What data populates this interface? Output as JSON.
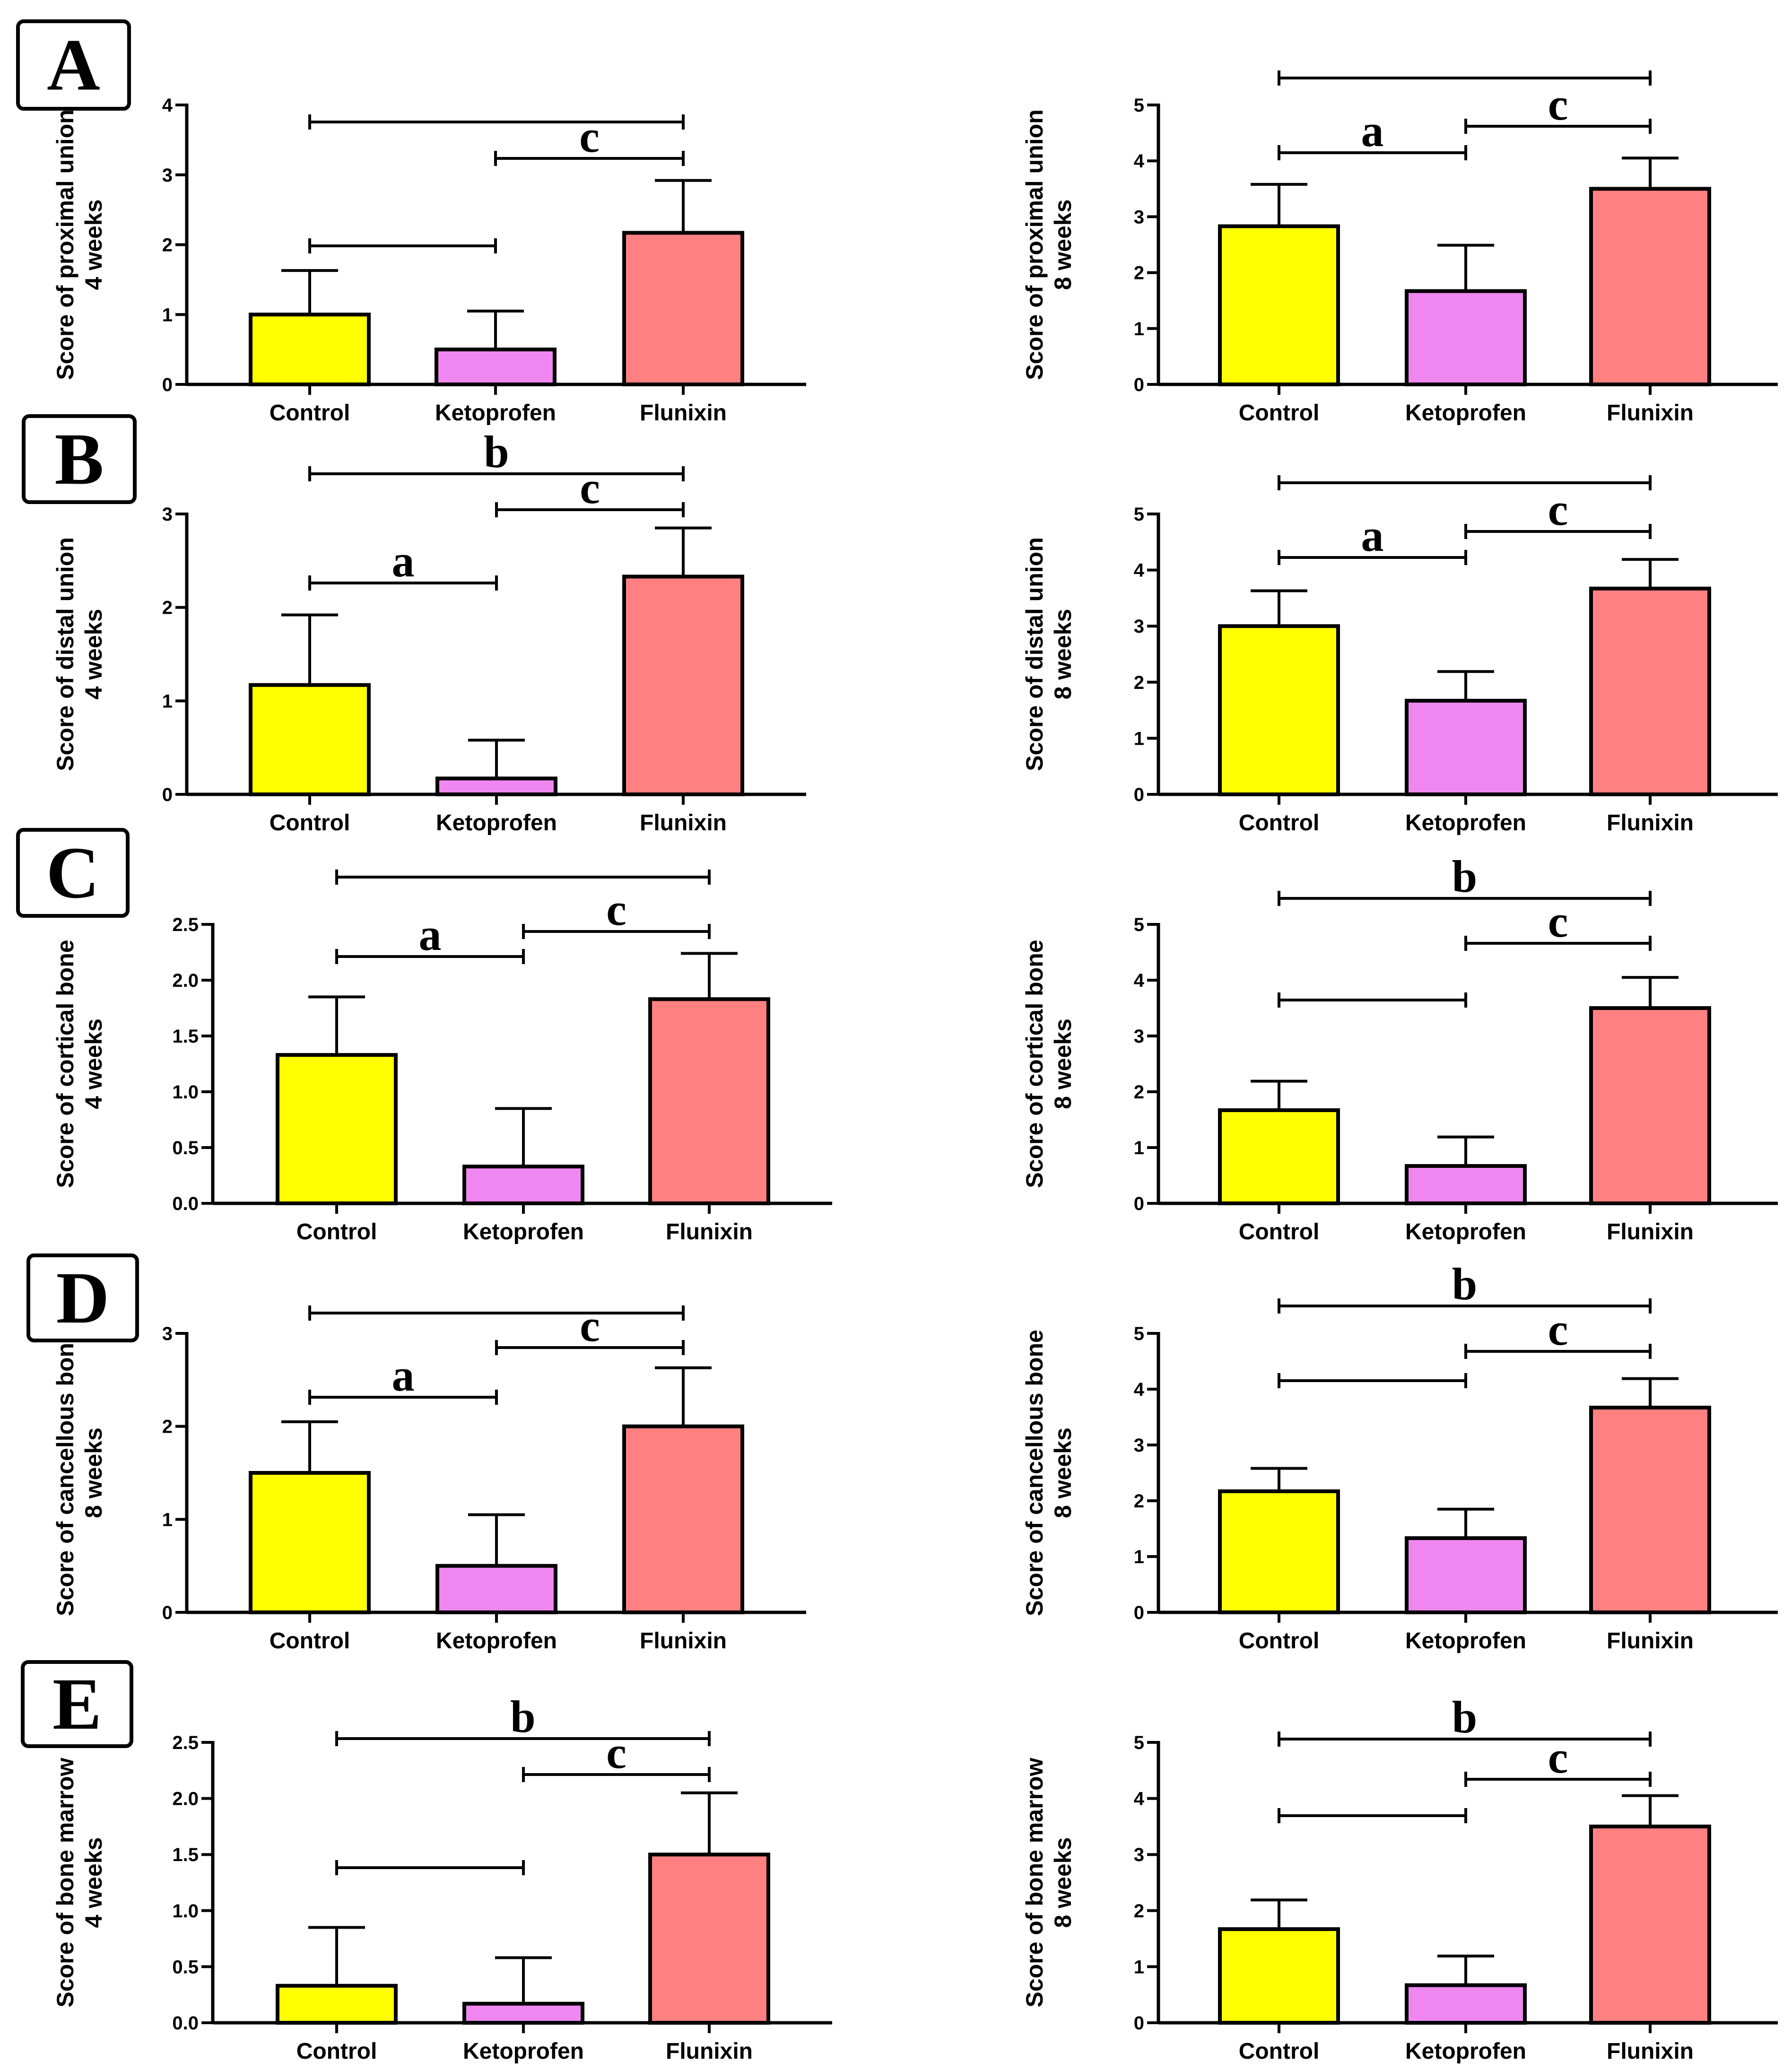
{
  "colors": {
    "control": "#ffff00",
    "ketoprofen": "#f087f0",
    "flunixin": "#ff8080",
    "axis": "#000000"
  },
  "chart_data": [
    {
      "panel": "A",
      "type": "bar",
      "categories": [
        "Control",
        "Ketoprofen",
        "Flunixin"
      ],
      "values": [
        1.0,
        0.5,
        2.17
      ],
      "errors": [
        0.63,
        0.55,
        0.75
      ],
      "ylabel_lines": [
        "Score of proximal union",
        "4 weeks"
      ],
      "ylim": [
        0,
        4
      ],
      "yticks": [
        "0",
        "1",
        "2",
        "3",
        "4"
      ],
      "brackets": [
        {
          "from": 0,
          "to": 1,
          "letter": ""
        },
        {
          "from": 1,
          "to": 2,
          "letter": "c"
        },
        {
          "from": 0,
          "to": 2,
          "letter": ""
        }
      ]
    },
    {
      "panel": "",
      "type": "bar",
      "categories": [
        "Control",
        "Ketoprofen",
        "Flunixin"
      ],
      "values": [
        2.83,
        1.67,
        3.5
      ],
      "errors": [
        0.75,
        0.82,
        0.55
      ],
      "ylabel_lines": [
        "Score of proximal union",
        "8 weeks"
      ],
      "ylim": [
        0,
        5
      ],
      "yticks": [
        "0",
        "1",
        "2",
        "3",
        "4",
        "5"
      ],
      "brackets": [
        {
          "from": 0,
          "to": 1,
          "letter": "a"
        },
        {
          "from": 1,
          "to": 2,
          "letter": "c"
        },
        {
          "from": 0,
          "to": 2,
          "letter": ""
        }
      ]
    },
    {
      "panel": "B",
      "type": "bar",
      "categories": [
        "Control",
        "Ketoprofen",
        "Flunixin"
      ],
      "values": [
        1.17,
        0.17,
        2.33
      ],
      "errors": [
        0.75,
        0.41,
        0.52
      ],
      "ylabel_lines": [
        "Score of distal union",
        "4 weeks"
      ],
      "ylim": [
        0,
        3
      ],
      "yticks": [
        "0",
        "1",
        "2",
        "3"
      ],
      "brackets": [
        {
          "from": 0,
          "to": 1,
          "letter": "a"
        },
        {
          "from": 1,
          "to": 2,
          "letter": "c"
        },
        {
          "from": 0,
          "to": 2,
          "letter": "b"
        }
      ]
    },
    {
      "panel": "",
      "type": "bar",
      "categories": [
        "Control",
        "Ketoprofen",
        "Flunixin"
      ],
      "values": [
        3.0,
        1.67,
        3.67
      ],
      "errors": [
        0.63,
        0.52,
        0.52
      ],
      "ylabel_lines": [
        "Score of distal union",
        "8 weeks"
      ],
      "ylim": [
        0,
        5
      ],
      "yticks": [
        "0",
        "1",
        "2",
        "3",
        "4",
        "5"
      ],
      "brackets": [
        {
          "from": 0,
          "to": 1,
          "letter": "a"
        },
        {
          "from": 1,
          "to": 2,
          "letter": "c"
        },
        {
          "from": 0,
          "to": 2,
          "letter": ""
        }
      ]
    },
    {
      "panel": "C",
      "type": "bar",
      "categories": [
        "Control",
        "Ketoprofen",
        "Flunixin"
      ],
      "values": [
        1.33,
        0.33,
        1.83
      ],
      "errors": [
        0.52,
        0.52,
        0.41
      ],
      "ylabel_lines": [
        "Score of cortical bone",
        "4 weeks"
      ],
      "ylim": [
        0,
        2.5
      ],
      "yticks": [
        "0.0",
        "0.5",
        "1.0",
        "1.5",
        "2.0",
        "2.5"
      ],
      "brackets": [
        {
          "from": 0,
          "to": 1,
          "letter": "a"
        },
        {
          "from": 1,
          "to": 2,
          "letter": "c"
        },
        {
          "from": 0,
          "to": 2,
          "letter": ""
        }
      ]
    },
    {
      "panel": "",
      "type": "bar",
      "categories": [
        "Control",
        "Ketoprofen",
        "Flunixin"
      ],
      "values": [
        1.67,
        0.67,
        3.5
      ],
      "errors": [
        0.52,
        0.52,
        0.55
      ],
      "ylabel_lines": [
        "Score of cortical bone",
        "8 weeks"
      ],
      "ylim": [
        0,
        5
      ],
      "yticks": [
        "0",
        "1",
        "2",
        "3",
        "4",
        "5"
      ],
      "brackets": [
        {
          "from": 0,
          "to": 1,
          "letter": ""
        },
        {
          "from": 1,
          "to": 2,
          "letter": "c"
        },
        {
          "from": 0,
          "to": 2,
          "letter": "b"
        }
      ]
    },
    {
      "panel": "D",
      "type": "bar",
      "categories": [
        "Control",
        "Ketoprofen",
        "Flunixin"
      ],
      "values": [
        1.5,
        0.5,
        2.0
      ],
      "errors": [
        0.55,
        0.55,
        0.63
      ],
      "ylabel_lines": [
        "Score of cancellous bone",
        "8 weeks"
      ],
      "ylim": [
        0,
        3
      ],
      "yticks": [
        "0",
        "1",
        "2",
        "3"
      ],
      "brackets": [
        {
          "from": 0,
          "to": 1,
          "letter": "a"
        },
        {
          "from": 1,
          "to": 2,
          "letter": "c"
        },
        {
          "from": 0,
          "to": 2,
          "letter": ""
        }
      ]
    },
    {
      "panel": "",
      "type": "bar",
      "categories": [
        "Control",
        "Ketoprofen",
        "Flunixin"
      ],
      "values": [
        2.17,
        1.33,
        3.67
      ],
      "errors": [
        0.41,
        0.52,
        0.52
      ],
      "ylabel_lines": [
        "Score of cancellous bone",
        "8 weeks"
      ],
      "ylim": [
        0,
        5
      ],
      "yticks": [
        "0",
        "1",
        "2",
        "3",
        "4",
        "5"
      ],
      "brackets": [
        {
          "from": 0,
          "to": 1,
          "letter": ""
        },
        {
          "from": 1,
          "to": 2,
          "letter": "c"
        },
        {
          "from": 0,
          "to": 2,
          "letter": "b"
        }
      ]
    },
    {
      "panel": "E",
      "type": "bar",
      "categories": [
        "Control",
        "Ketoprofen",
        "Flunixin"
      ],
      "values": [
        0.33,
        0.17,
        1.5
      ],
      "errors": [
        0.52,
        0.41,
        0.55
      ],
      "ylabel_lines": [
        "Score of bone marrow",
        "4 weeks"
      ],
      "ylim": [
        0,
        2.5
      ],
      "yticks": [
        "0.0",
        "0.5",
        "1.0",
        "1.5",
        "2.0",
        "2.5"
      ],
      "brackets": [
        {
          "from": 0,
          "to": 1,
          "letter": ""
        },
        {
          "from": 1,
          "to": 2,
          "letter": "c"
        },
        {
          "from": 0,
          "to": 2,
          "letter": "b"
        }
      ]
    },
    {
      "panel": "",
      "type": "bar",
      "categories": [
        "Control",
        "Ketoprofen",
        "Flunixin"
      ],
      "values": [
        1.67,
        0.67,
        3.5
      ],
      "errors": [
        0.52,
        0.52,
        0.55
      ],
      "ylabel_lines": [
        "Score of bone marrow",
        "8 weeks"
      ],
      "ylim": [
        0,
        5
      ],
      "yticks": [
        "0",
        "1",
        "2",
        "3",
        "4",
        "5"
      ],
      "brackets": [
        {
          "from": 0,
          "to": 1,
          "letter": ""
        },
        {
          "from": 1,
          "to": 2,
          "letter": "c"
        },
        {
          "from": 0,
          "to": 2,
          "letter": "b"
        }
      ]
    }
  ]
}
